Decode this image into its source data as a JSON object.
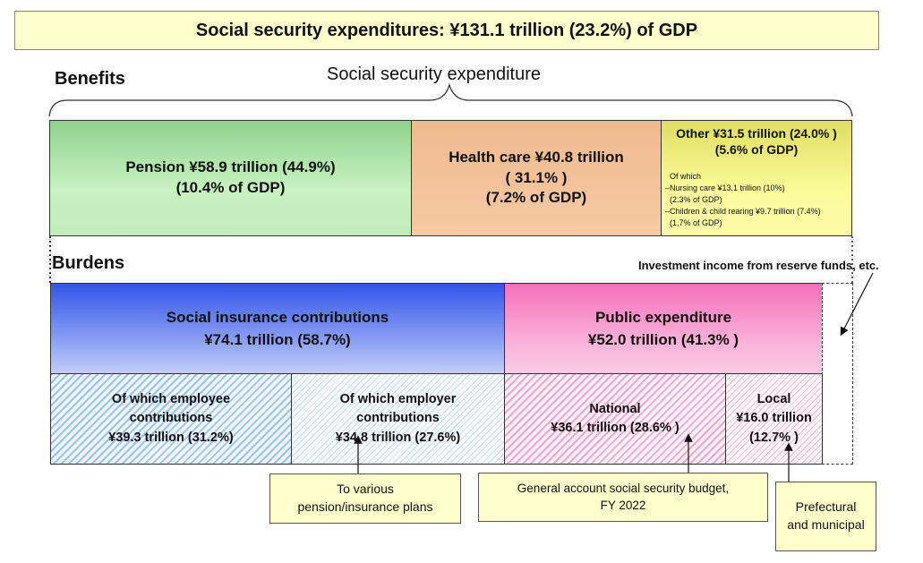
{
  "title": "Social security expenditures: ¥131.1 trillion (23.2%) of GDP",
  "benefits_label": "Benefits",
  "burdens_label": "Burdens",
  "expenditure_label": "Social security expenditure",
  "benefits": {
    "pension": {
      "line1": "Pension ¥58.9 trillion (44.9%)",
      "line2": "(10.4% of GDP)",
      "color": "#b6ecb0"
    },
    "health_care": {
      "line1": "Health care ¥40.8 trillion",
      "line2": "( 31.1% )",
      "line3": "(7.2% of GDP)",
      "color": "#f4c29a"
    },
    "other": {
      "line1": "Other ¥31.5 trillion (24.0% )",
      "line2": "(5.6% of GDP)",
      "of_which": "Of which",
      "nursing": "–Nursing care ¥13.1 trillion (10%)",
      "nursing_gdp": "(2.3% of GDP)",
      "children": "–Children & child rearing ¥9.7 trillion (7.4%)",
      "children_gdp": "(1.7% of GDP)",
      "color": "#f6f68a"
    }
  },
  "burdens": {
    "social_insurance": {
      "line1": "Social insurance contributions",
      "line2": "¥74.1 trillion (58.7%)",
      "color": "#6f88ee"
    },
    "public_expenditure": {
      "line1": "Public expenditure",
      "line2": "¥52.0 trillion (41.3% )",
      "color": "#f7a0d0"
    },
    "employee": {
      "line1": "Of which employee",
      "line2": "contributions",
      "line3": "¥39.3 trillion (31.2%)"
    },
    "employer": {
      "line1": "Of which employer",
      "line2": "contributions",
      "line3": "¥34.8 trillion (27.6%)"
    },
    "national": {
      "line1": "National",
      "line2": "¥36.1 trillion (28.6% )"
    },
    "local": {
      "line1": "Local",
      "line2": "¥16.0 trillion",
      "line3": "(12.7% )"
    }
  },
  "investment_income_label": "Investment income from reserve funds, etc.",
  "callouts": {
    "plans": {
      "line1": "To various",
      "line2": "pension/insurance plans"
    },
    "budget": {
      "line1": "General account social security budget,",
      "line2": "FY 2022"
    },
    "prefectural": {
      "line1": "Prefectural",
      "line2": "and municipal"
    }
  }
}
